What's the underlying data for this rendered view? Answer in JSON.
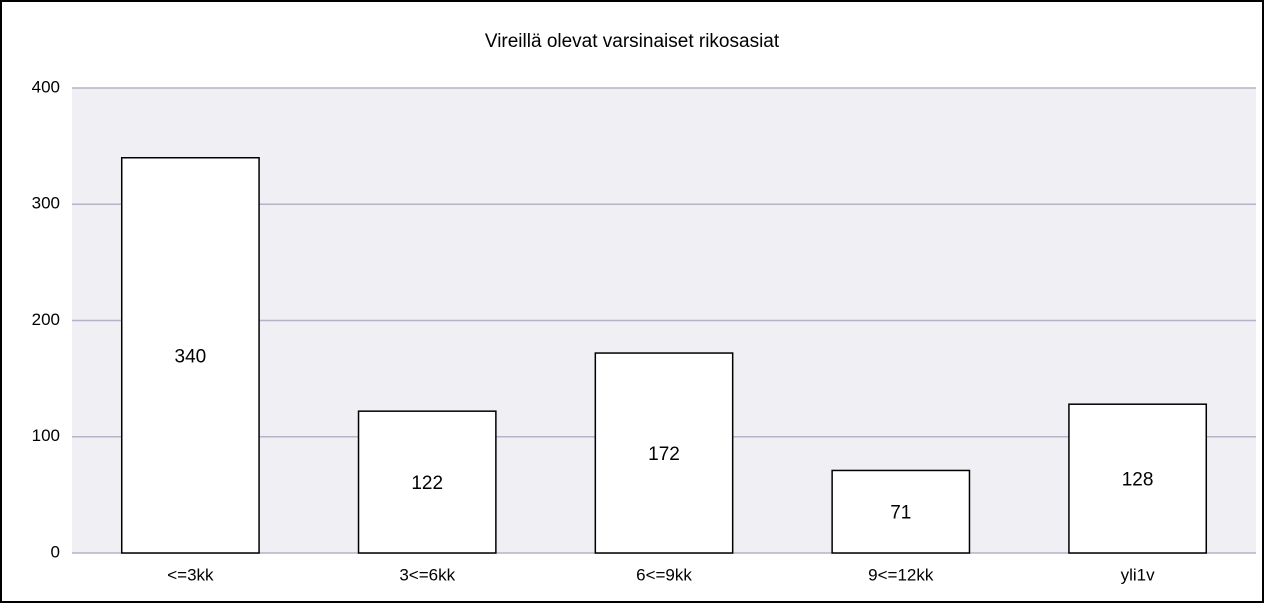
{
  "chart_data": {
    "type": "bar",
    "title": "Vireillä olevat varsinaiset rikosasiat",
    "categories": [
      "<=3kk",
      "3<=6kk",
      "6<=9kk",
      "9<=12kk",
      "yli1v"
    ],
    "values": [
      340,
      122,
      172,
      71,
      128
    ],
    "color": "#ffffff",
    "ylim": [
      0,
      400
    ],
    "yticks": [
      0,
      100,
      200,
      300,
      400
    ],
    "grid": true
  }
}
